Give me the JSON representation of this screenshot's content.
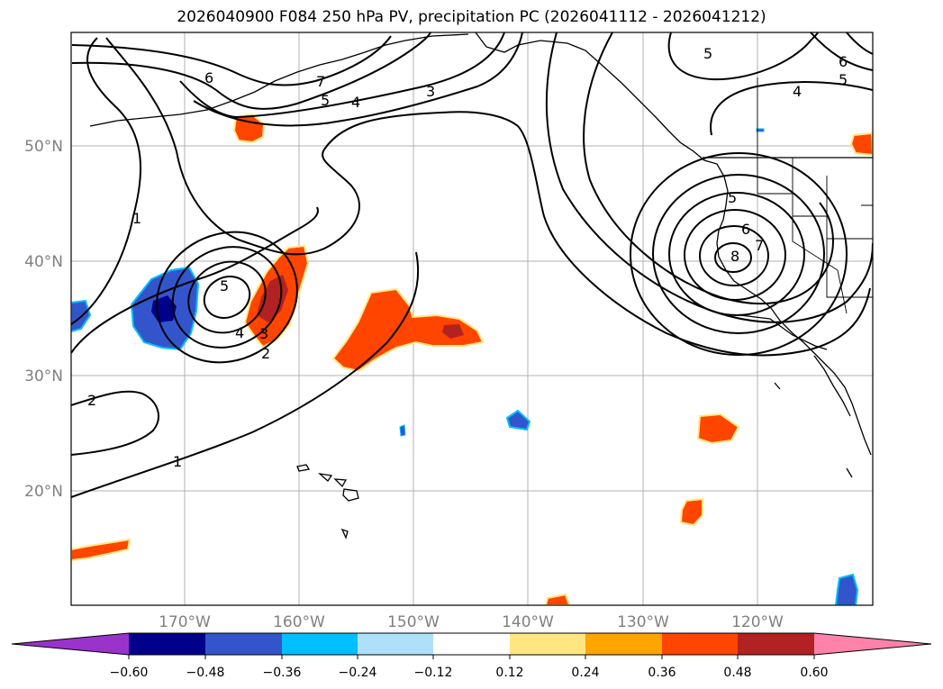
{
  "title": "2026040900 F084 250 hPa PV, precipitation PC (2026041112 - 2026041212)",
  "axes": {
    "lat_labels": [
      "50°N",
      "40°N",
      "30°N",
      "20°N"
    ],
    "lon_labels": [
      "170°W",
      "160°W",
      "150°W",
      "140°W",
      "130°W",
      "120°W"
    ]
  },
  "colorbar": {
    "ticks": [
      "−0.60",
      "−0.48",
      "−0.36",
      "−0.24",
      "−0.12",
      "0.12",
      "0.24",
      "0.36",
      "0.48",
      "0.60"
    ],
    "colors": [
      "#9933cc",
      "#00008b",
      "#3355cc",
      "#00bfff",
      "#aee0fa",
      "#ffffff",
      "#ffe680",
      "#ffa500",
      "#ff4500",
      "#b22222",
      "#ff82ab"
    ]
  },
  "contour_labels": [
    "6",
    "7",
    "5",
    "4",
    "3",
    "1",
    "5",
    "4",
    "3",
    "2",
    "2",
    "1",
    "5",
    "6",
    "5",
    "4",
    "5",
    "6",
    "7",
    "8"
  ],
  "colors": {
    "grid": "#b0b0b0",
    "contour": "#000000",
    "coast": "#000000",
    "precip_neg_dark": "#00008b",
    "precip_neg": "#3355cc",
    "precip_neg_light": "#00bfff",
    "precip_pos": "#ff4500",
    "precip_pos_dark": "#b22222",
    "precip_pos_light": "#ffa500",
    "precip_pos_edge": "#ffe680"
  }
}
